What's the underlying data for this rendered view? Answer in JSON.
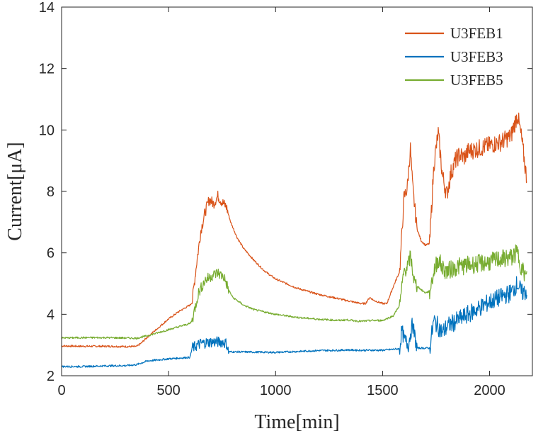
{
  "chart_data": {
    "type": "line",
    "xlabel": "Time[min]",
    "ylabel": "Current[μA]",
    "xlim": [
      0,
      2200
    ],
    "ylim": [
      2,
      14
    ],
    "xticks": [
      0,
      500,
      1000,
      1500,
      2000
    ],
    "yticks": [
      2,
      4,
      6,
      8,
      10,
      12,
      14
    ],
    "grid": false,
    "legend_position": "top-right",
    "series": [
      {
        "name": "U3FEB1",
        "color": "#D95319",
        "points": [
          [
            0,
            2.97
          ],
          [
            100,
            2.96
          ],
          [
            200,
            2.96
          ],
          [
            300,
            2.95
          ],
          [
            350,
            2.95
          ],
          [
            370,
            3.05
          ],
          [
            400,
            3.25
          ],
          [
            450,
            3.55
          ],
          [
            500,
            3.85
          ],
          [
            550,
            4.1
          ],
          [
            600,
            4.3
          ],
          [
            610,
            4.4
          ],
          [
            630,
            5.6
          ],
          [
            650,
            6.7
          ],
          [
            670,
            7.3
          ],
          [
            690,
            7.75
          ],
          [
            710,
            7.6
          ],
          [
            730,
            7.85
          ],
          [
            750,
            7.65
          ],
          [
            770,
            7.5
          ],
          [
            790,
            7.0
          ],
          [
            820,
            6.5
          ],
          [
            850,
            6.15
          ],
          [
            900,
            5.75
          ],
          [
            950,
            5.4
          ],
          [
            1000,
            5.15
          ],
          [
            1100,
            4.85
          ],
          [
            1200,
            4.65
          ],
          [
            1300,
            4.5
          ],
          [
            1330,
            4.45
          ],
          [
            1400,
            4.35
          ],
          [
            1420,
            4.35
          ],
          [
            1440,
            4.55
          ],
          [
            1460,
            4.45
          ],
          [
            1500,
            4.35
          ],
          [
            1520,
            4.35
          ],
          [
            1550,
            4.9
          ],
          [
            1580,
            5.4
          ],
          [
            1600,
            7.8
          ],
          [
            1615,
            8.1
          ],
          [
            1630,
            9.4
          ],
          [
            1640,
            8.2
          ],
          [
            1660,
            6.8
          ],
          [
            1680,
            6.4
          ],
          [
            1700,
            6.25
          ],
          [
            1720,
            6.3
          ],
          [
            1740,
            8.9
          ],
          [
            1760,
            9.9
          ],
          [
            1780,
            8.5
          ],
          [
            1800,
            7.9
          ],
          [
            1820,
            8.6
          ],
          [
            1840,
            9.0
          ],
          [
            1860,
            9.2
          ],
          [
            1880,
            9.1
          ],
          [
            1900,
            9.3
          ],
          [
            1950,
            9.4
          ],
          [
            2000,
            9.5
          ],
          [
            2050,
            9.6
          ],
          [
            2100,
            9.8
          ],
          [
            2130,
            10.5
          ],
          [
            2150,
            9.7
          ],
          [
            2170,
            8.6
          ],
          [
            2175,
            8.4
          ]
        ]
      },
      {
        "name": "U3FEB3",
        "color": "#0072BD",
        "points": [
          [
            0,
            2.3
          ],
          [
            100,
            2.3
          ],
          [
            200,
            2.32
          ],
          [
            300,
            2.33
          ],
          [
            350,
            2.36
          ],
          [
            400,
            2.48
          ],
          [
            500,
            2.55
          ],
          [
            600,
            2.6
          ],
          [
            610,
            2.9
          ],
          [
            650,
            3.05
          ],
          [
            700,
            3.1
          ],
          [
            750,
            3.1
          ],
          [
            770,
            3.05
          ],
          [
            780,
            2.78
          ],
          [
            900,
            2.77
          ],
          [
            1000,
            2.76
          ],
          [
            1100,
            2.79
          ],
          [
            1200,
            2.82
          ],
          [
            1300,
            2.83
          ],
          [
            1330,
            2.84
          ],
          [
            1400,
            2.83
          ],
          [
            1500,
            2.83
          ],
          [
            1580,
            2.88
          ],
          [
            1590,
            3.5
          ],
          [
            1600,
            3.2
          ],
          [
            1620,
            3.0
          ],
          [
            1640,
            3.7
          ],
          [
            1660,
            2.9
          ],
          [
            1720,
            2.9
          ],
          [
            1740,
            3.8
          ],
          [
            1760,
            3.6
          ],
          [
            1780,
            3.4
          ],
          [
            1800,
            3.6
          ],
          [
            1850,
            3.8
          ],
          [
            1900,
            4.0
          ],
          [
            1950,
            4.2
          ],
          [
            2000,
            4.4
          ],
          [
            2050,
            4.55
          ],
          [
            2100,
            4.7
          ],
          [
            2130,
            5.0
          ],
          [
            2150,
            4.7
          ],
          [
            2175,
            4.75
          ]
        ]
      },
      {
        "name": "U3FEB5",
        "color": "#77AC30",
        "points": [
          [
            0,
            3.23
          ],
          [
            100,
            3.24
          ],
          [
            200,
            3.24
          ],
          [
            300,
            3.23
          ],
          [
            350,
            3.22
          ],
          [
            400,
            3.3
          ],
          [
            500,
            3.5
          ],
          [
            600,
            3.7
          ],
          [
            610,
            3.8
          ],
          [
            640,
            4.7
          ],
          [
            670,
            5.1
          ],
          [
            700,
            5.25
          ],
          [
            730,
            5.35
          ],
          [
            760,
            5.2
          ],
          [
            780,
            4.8
          ],
          [
            800,
            4.55
          ],
          [
            850,
            4.3
          ],
          [
            900,
            4.15
          ],
          [
            1000,
            4.0
          ],
          [
            1100,
            3.9
          ],
          [
            1200,
            3.84
          ],
          [
            1300,
            3.8
          ],
          [
            1330,
            3.82
          ],
          [
            1400,
            3.77
          ],
          [
            1450,
            3.8
          ],
          [
            1500,
            3.8
          ],
          [
            1550,
            3.95
          ],
          [
            1580,
            4.3
          ],
          [
            1600,
            5.4
          ],
          [
            1620,
            5.6
          ],
          [
            1630,
            5.9
          ],
          [
            1650,
            5.0
          ],
          [
            1680,
            4.8
          ],
          [
            1700,
            4.7
          ],
          [
            1720,
            4.75
          ],
          [
            1740,
            5.4
          ],
          [
            1760,
            5.8
          ],
          [
            1780,
            5.5
          ],
          [
            1800,
            5.4
          ],
          [
            1850,
            5.55
          ],
          [
            1900,
            5.6
          ],
          [
            1950,
            5.65
          ],
          [
            2000,
            5.7
          ],
          [
            2050,
            5.8
          ],
          [
            2100,
            5.85
          ],
          [
            2130,
            6.0
          ],
          [
            2150,
            5.5
          ],
          [
            2175,
            5.15
          ]
        ]
      }
    ]
  }
}
